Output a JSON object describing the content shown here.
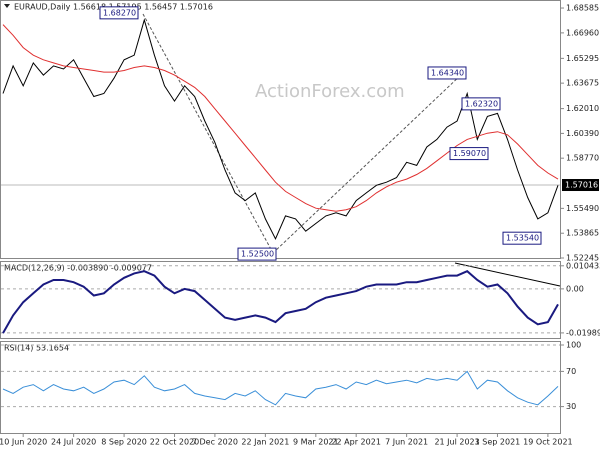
{
  "chart_data": [
    {
      "type": "line",
      "title": "EURAUD,Daily  1.56618 1.57195 1.56457 1.57016",
      "watermark": "ActionForex.com",
      "categories": [
        null,
        null,
        "10 Jun 2020",
        null,
        null,
        null,
        null,
        "24 Jul 2020",
        null,
        null,
        null,
        null,
        "8 Sep 2020",
        null,
        null,
        null,
        null,
        "22 Oct 2020",
        null,
        null,
        null,
        "7 Dec 2020",
        null,
        null,
        null,
        null,
        "22 Jan 2021",
        null,
        null,
        null,
        null,
        "9 Mar 2021",
        null,
        null,
        null,
        "22 Apr 2021",
        null,
        null,
        null,
        null,
        "7 Jun 2021",
        null,
        null,
        null,
        null,
        "21 Jul 2021",
        null,
        null,
        null,
        "3 Sep 2021",
        null,
        null,
        null,
        null,
        "19 Oct 2021",
        null
      ],
      "series": [
        {
          "color": "#000000",
          "values": [
            1.63,
            1.648,
            1.635,
            1.65,
            1.642,
            1.648,
            1.646,
            1.652,
            1.64,
            1.628,
            1.63,
            1.64,
            1.652,
            1.655,
            1.678,
            1.655,
            1.635,
            1.625,
            1.635,
            1.628,
            1.612,
            1.598,
            1.58,
            1.565,
            1.56,
            1.565,
            1.548,
            1.535,
            1.55,
            1.548,
            1.54,
            1.545,
            1.55,
            1.552,
            1.55,
            1.56,
            1.565,
            1.57,
            1.572,
            1.575,
            1.585,
            1.583,
            1.595,
            1.6,
            1.608,
            1.612,
            1.63,
            1.6,
            1.615,
            1.617,
            1.6,
            1.58,
            1.562,
            1.548,
            1.552,
            1.57
          ]
        },
        {
          "color": "#e03030",
          "values": [
            1.675,
            1.668,
            1.66,
            1.655,
            1.652,
            1.65,
            1.648,
            1.647,
            1.646,
            1.645,
            1.644,
            1.644,
            1.645,
            1.647,
            1.648,
            1.647,
            1.645,
            1.642,
            1.638,
            1.634,
            1.628,
            1.62,
            1.612,
            1.604,
            1.596,
            1.588,
            1.58,
            1.572,
            1.566,
            1.562,
            1.558,
            1.555,
            1.554,
            1.553,
            1.554,
            1.556,
            1.56,
            1.565,
            1.569,
            1.572,
            1.574,
            1.577,
            1.581,
            1.586,
            1.591,
            1.596,
            1.6,
            1.602,
            1.604,
            1.605,
            1.603,
            1.597,
            1.59,
            1.583,
            1.578,
            1.574
          ]
        }
      ],
      "ylim": [
        1.52245,
        1.6911
      ],
      "yticks": [
        1.68585,
        {
          "value": 1.6696,
          "label": "1.66960"
        },
        1.65295,
        1.63675,
        {
          "value": 1.6201,
          "label": "1.62010"
        },
        {
          "value": 1.6039,
          "label": "1.60390"
        },
        {
          "value": 1.5877,
          "label": "1.58770"
        },
        {
          "value": 1.5549,
          "label": "1.55490"
        },
        1.53865,
        1.52245
      ],
      "last": {
        "value": 1.57016,
        "label": "1.57016"
      },
      "annotations": [
        {
          "value": 1.6827,
          "label": "1.68270"
        },
        {
          "value": 1.525,
          "label": "1.52500"
        },
        {
          "value": 1.6434,
          "label": "1.64340"
        },
        {
          "value": 1.6232,
          "label": "1.62320"
        },
        {
          "value": 1.5907,
          "label": "1.59070"
        },
        {
          "value": 1.5354,
          "label": "1.53540"
        }
      ]
    },
    {
      "type": "line",
      "title": "MACD(12,26,9) -0.003890 -0.009077",
      "series": [
        {
          "color": "#1a1a80",
          "values": [
            -0.02,
            -0.012,
            -0.006,
            -0.002,
            0.002,
            0.004,
            0.004,
            0.003,
            0.001,
            -0.003,
            -0.002,
            0.002,
            0.005,
            0.007,
            0.008,
            0.006,
            0.001,
            -0.002,
            0.0,
            -0.001,
            -0.005,
            -0.009,
            -0.013,
            -0.014,
            -0.013,
            -0.012,
            -0.013,
            -0.015,
            -0.011,
            -0.01,
            -0.009,
            -0.006,
            -0.004,
            -0.003,
            -0.002,
            -0.001,
            0.001,
            0.002,
            0.002,
            0.002,
            0.003,
            0.003,
            0.004,
            0.005,
            0.006,
            0.006,
            0.008,
            0.004,
            0.001,
            0.002,
            -0.002,
            -0.008,
            -0.013,
            -0.016,
            -0.015,
            -0.007
          ]
        }
      ],
      "ylim": [
        -0.0222,
        0.0126
      ],
      "yticks": [
        0.010433,
        {
          "value": 0,
          "label": "0.00"
        },
        -0.019898
      ]
    },
    {
      "type": "line",
      "title": "RSI(14) 53.1654",
      "series": [
        {
          "color": "#3a8fd8",
          "values": [
            50,
            45,
            52,
            55,
            48,
            55,
            50,
            48,
            52,
            45,
            50,
            58,
            60,
            55,
            65,
            52,
            48,
            50,
            55,
            45,
            42,
            40,
            38,
            45,
            42,
            48,
            38,
            32,
            45,
            42,
            40,
            50,
            52,
            55,
            50,
            58,
            55,
            60,
            56,
            58,
            60,
            57,
            62,
            60,
            62,
            60,
            70,
            50,
            60,
            58,
            48,
            40,
            35,
            32,
            42,
            53
          ]
        }
      ],
      "ylim": [
        0,
        100
      ],
      "yticks": [
        100,
        70,
        30
      ]
    }
  ]
}
